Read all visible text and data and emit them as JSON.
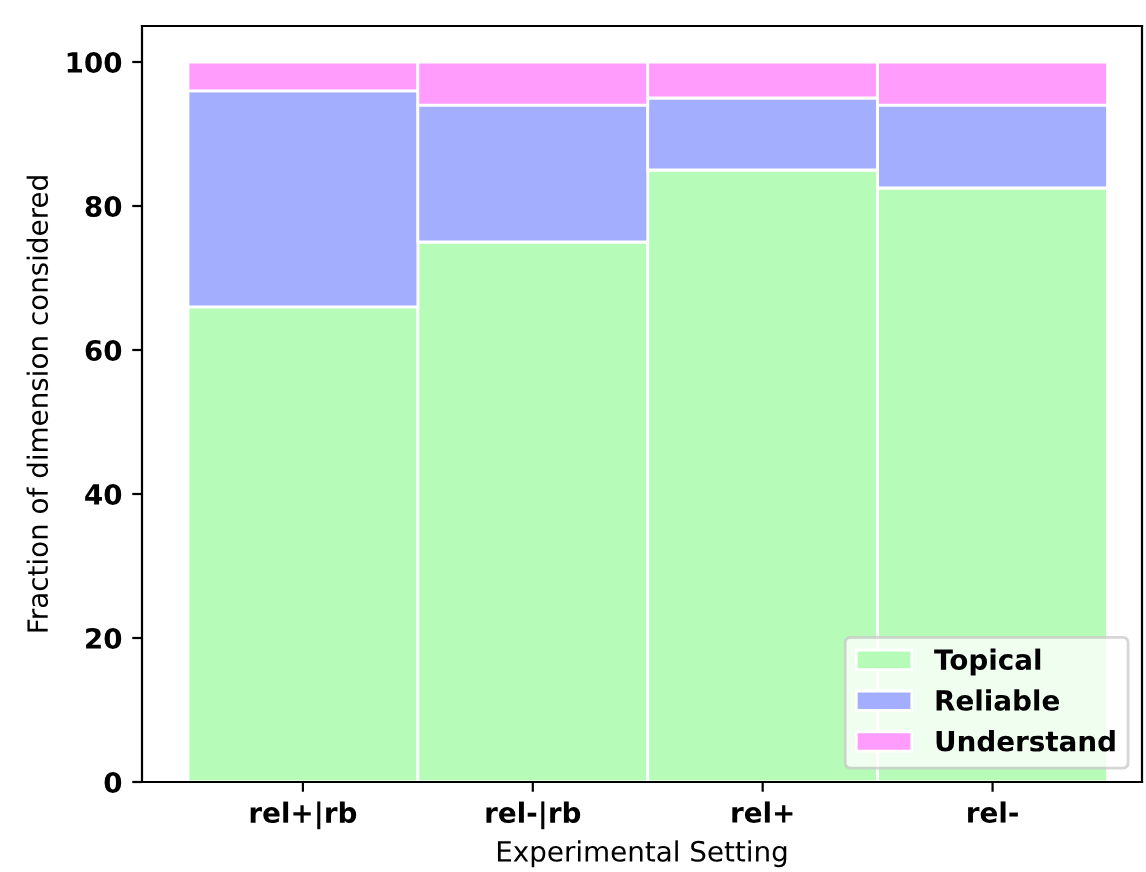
{
  "chart_data": {
    "type": "bar",
    "stacked": true,
    "xlabel": "Experimental Setting",
    "ylabel": "Fraction of dimension considered",
    "categories": [
      "rel+|rb",
      "rel-|rb",
      "rel+",
      "rel-"
    ],
    "series": [
      {
        "name": "Topical",
        "color": "#b6fcb8",
        "values": [
          66,
          75,
          85,
          82.5
        ]
      },
      {
        "name": "Reliable",
        "color": "#a3aefe",
        "values": [
          30,
          19,
          10,
          11.5
        ]
      },
      {
        "name": "Understand",
        "color": "#ff9cfc",
        "values": [
          4,
          6,
          5,
          6
        ]
      }
    ],
    "ylim": [
      0,
      105
    ],
    "yticks": [
      0,
      20,
      40,
      60,
      80,
      100
    ],
    "grid": false,
    "legend": "bottom right"
  }
}
